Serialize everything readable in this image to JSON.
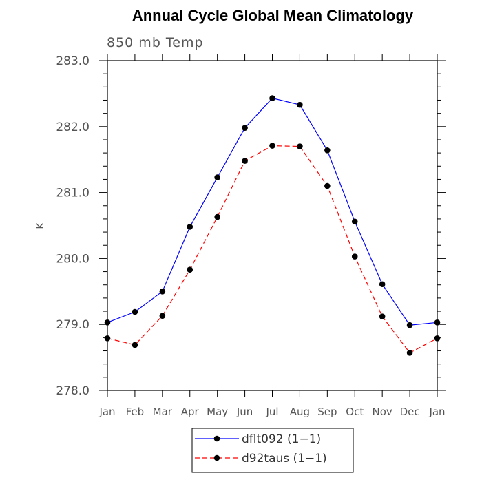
{
  "chart_data": {
    "type": "line",
    "title": "Annual Cycle Global Mean Climatology",
    "subtitle": "850 mb Temp",
    "xlabel": "",
    "ylabel": "K",
    "categories": [
      "Jan",
      "Feb",
      "Mar",
      "Apr",
      "May",
      "Jun",
      "Jul",
      "Aug",
      "Sep",
      "Oct",
      "Nov",
      "Dec",
      "Jan"
    ],
    "ylim": [
      278.0,
      283.0
    ],
    "yticks": [
      "278.0",
      "279.0",
      "280.0",
      "281.0",
      "282.0",
      "283.0"
    ],
    "series": [
      {
        "name": "dflt092 (1−1)",
        "color": "#0000ff",
        "style": "solid",
        "marker": "filled-circle",
        "values": [
          279.03,
          279.19,
          279.5,
          280.48,
          281.23,
          281.98,
          282.43,
          282.33,
          281.64,
          280.56,
          279.61,
          278.99,
          279.03
        ]
      },
      {
        "name": "d92taus (1−1)",
        "color": "#ff0000",
        "style": "dashed",
        "marker": "filled-circle",
        "values": [
          278.79,
          278.69,
          279.13,
          279.83,
          280.63,
          281.48,
          281.71,
          281.7,
          281.1,
          280.03,
          279.12,
          278.57,
          278.79
        ]
      }
    ],
    "grid": false,
    "legend_position": "bottom-center"
  }
}
